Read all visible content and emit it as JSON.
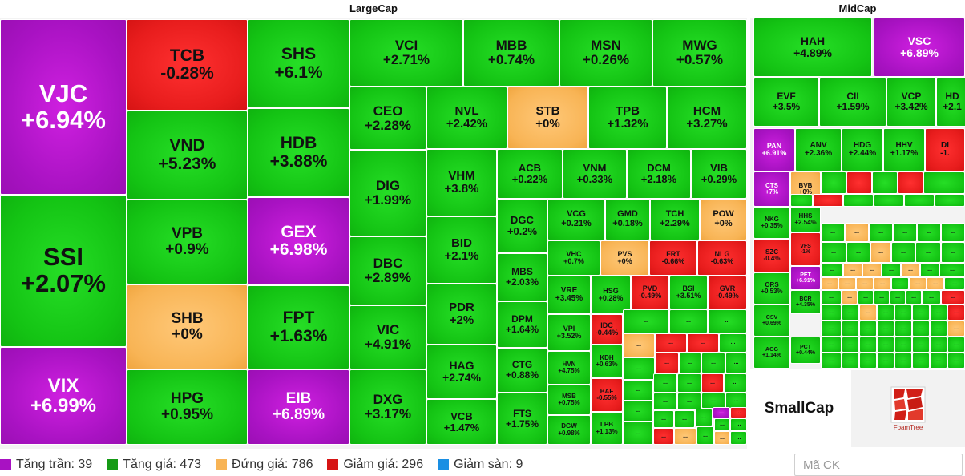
{
  "largecap": {
    "title": "LargeCap",
    "tiles": [
      {
        "t": "VJC",
        "p": "+6.94%",
        "s": "ceil"
      },
      {
        "t": "SSI",
        "p": "+2.07%",
        "s": "up"
      },
      {
        "t": "VIX",
        "p": "+6.99%",
        "s": "ceil"
      },
      {
        "t": "TCB",
        "p": "-0.28%",
        "s": "down"
      },
      {
        "t": "VND",
        "p": "+5.23%",
        "s": "up"
      },
      {
        "t": "VPB",
        "p": "+0.9%",
        "s": "up"
      },
      {
        "t": "SHB",
        "p": "+0%",
        "s": "flat"
      },
      {
        "t": "HPG",
        "p": "+0.95%",
        "s": "up"
      },
      {
        "t": "SHS",
        "p": "+6.1%",
        "s": "up"
      },
      {
        "t": "HDB",
        "p": "+3.88%",
        "s": "up"
      },
      {
        "t": "GEX",
        "p": "+6.98%",
        "s": "ceil"
      },
      {
        "t": "FPT",
        "p": "+1.63%",
        "s": "up"
      },
      {
        "t": "EIB",
        "p": "+6.89%",
        "s": "ceil"
      },
      {
        "t": "VCI",
        "p": "+2.71%",
        "s": "up"
      },
      {
        "t": "MBB",
        "p": "+0.74%",
        "s": "up"
      },
      {
        "t": "MSN",
        "p": "+0.26%",
        "s": "up"
      },
      {
        "t": "MWG",
        "p": "+0.57%",
        "s": "up"
      },
      {
        "t": "CEO",
        "p": "+2.28%",
        "s": "up"
      },
      {
        "t": "DIG",
        "p": "+1.99%",
        "s": "up"
      },
      {
        "t": "DBC",
        "p": "+2.89%",
        "s": "up"
      },
      {
        "t": "VIC",
        "p": "+4.91%",
        "s": "up"
      },
      {
        "t": "DXG",
        "p": "+3.17%",
        "s": "up"
      },
      {
        "t": "NVL",
        "p": "+2.42%",
        "s": "up"
      },
      {
        "t": "STB",
        "p": "+0%",
        "s": "flat"
      },
      {
        "t": "TPB",
        "p": "+1.32%",
        "s": "up"
      },
      {
        "t": "HCM",
        "p": "+3.27%",
        "s": "up"
      },
      {
        "t": "VHM",
        "p": "+3.8%",
        "s": "up"
      },
      {
        "t": "BID",
        "p": "+2.1%",
        "s": "up"
      },
      {
        "t": "PDR",
        "p": "+2%",
        "s": "up"
      },
      {
        "t": "HAG",
        "p": "+2.74%",
        "s": "up"
      },
      {
        "t": "VCB",
        "p": "+1.47%",
        "s": "up"
      },
      {
        "t": "ACB",
        "p": "+0.22%",
        "s": "up"
      },
      {
        "t": "VNM",
        "p": "+0.33%",
        "s": "up"
      },
      {
        "t": "DCM",
        "p": "+2.18%",
        "s": "up"
      },
      {
        "t": "VIB",
        "p": "+0.29%",
        "s": "up"
      },
      {
        "t": "DGC",
        "p": "+0.2%",
        "s": "up"
      },
      {
        "t": "MBS",
        "p": "+2.03%",
        "s": "up"
      },
      {
        "t": "DPM",
        "p": "+1.64%",
        "s": "up"
      },
      {
        "t": "CTG",
        "p": "+0.88%",
        "s": "up"
      },
      {
        "t": "FTS",
        "p": "+1.75%",
        "s": "up"
      },
      {
        "t": "VCG",
        "p": "+0.21%",
        "s": "up"
      },
      {
        "t": "GMD",
        "p": "+0.18%",
        "s": "up"
      },
      {
        "t": "TCH",
        "p": "+2.29%",
        "s": "up"
      },
      {
        "t": "POW",
        "p": "+0%",
        "s": "flat"
      },
      {
        "t": "VHC",
        "p": "+0.7%",
        "s": "up"
      },
      {
        "t": "PVS",
        "p": "+0%",
        "s": "flat"
      },
      {
        "t": "FRT",
        "p": "-0.66%",
        "s": "down"
      },
      {
        "t": "NLG",
        "p": "-0.63%",
        "s": "down"
      },
      {
        "t": "VRE",
        "p": "+3.45%",
        "s": "up"
      },
      {
        "t": "HSG",
        "p": "+0.28%",
        "s": "up"
      },
      {
        "t": "PVD",
        "p": "-0.49%",
        "s": "down"
      },
      {
        "t": "BSI",
        "p": "+3.51%",
        "s": "up"
      },
      {
        "t": "GVR",
        "p": "-0.49%",
        "s": "down"
      },
      {
        "t": "VPI",
        "p": "+3.52%",
        "s": "up"
      },
      {
        "t": "IDC",
        "p": "-0.44%",
        "s": "down"
      },
      {
        "t": "HVN",
        "p": "+4.75%",
        "s": "up"
      },
      {
        "t": "KDH",
        "p": "+0.63%",
        "s": "up"
      },
      {
        "t": "MSB",
        "p": "+0.75%",
        "s": "up"
      },
      {
        "t": "BAF",
        "p": "-0.55%",
        "s": "down"
      },
      {
        "t": "DGW",
        "p": "+0.98%",
        "s": "up"
      },
      {
        "t": "LPB",
        "p": "+1.13%",
        "s": "up"
      }
    ]
  },
  "midcap": {
    "title": "MidCap",
    "tiles": [
      {
        "t": "HAH",
        "p": "+4.89%",
        "s": "up"
      },
      {
        "t": "VSC",
        "p": "+6.89%",
        "s": "ceil"
      },
      {
        "t": "EVF",
        "p": "+3.5%",
        "s": "up"
      },
      {
        "t": "CII",
        "p": "+1.59%",
        "s": "up"
      },
      {
        "t": "VCP",
        "p": "+3.42%",
        "s": "up"
      },
      {
        "t": "HD",
        "p": "+2.1",
        "s": "up"
      },
      {
        "t": "PAN",
        "p": "+6.91%",
        "s": "ceil"
      },
      {
        "t": "ANV",
        "p": "+2.36%",
        "s": "up"
      },
      {
        "t": "HDG",
        "p": "+2.44%",
        "s": "up"
      },
      {
        "t": "HHV",
        "p": "+1.17%",
        "s": "up"
      },
      {
        "t": "DI",
        "p": "-1.",
        "s": "down"
      },
      {
        "t": "CTS",
        "p": "+7%",
        "s": "ceil"
      },
      {
        "t": "BVB",
        "p": "+0%",
        "s": "flat"
      },
      {
        "t": "NKG",
        "p": "+0.35%",
        "s": "up"
      },
      {
        "t": "HHS",
        "p": "+2.54%",
        "s": "up"
      },
      {
        "t": "SZC",
        "p": "-0.4%",
        "s": "down"
      },
      {
        "t": "VFS",
        "p": "-1%",
        "s": "down"
      },
      {
        "t": "PET",
        "p": "+6.91%",
        "s": "ceil"
      },
      {
        "t": "ORS",
        "p": "+0.53%",
        "s": "up"
      },
      {
        "t": "BCR",
        "p": "+4.35%",
        "s": "up"
      },
      {
        "t": "CSV",
        "p": "+0.69%",
        "s": "up"
      },
      {
        "t": "AGG",
        "p": "+1.14%",
        "s": "up"
      },
      {
        "t": "PCT",
        "p": "+0.44%",
        "s": "up"
      }
    ]
  },
  "dots_label": "...",
  "smallcap": {
    "title": "SmallCap"
  },
  "foamtree": {
    "label": "FoamTree"
  },
  "legend": [
    {
      "label": "Tăng trần: 39",
      "color": "#a812c2"
    },
    {
      "label": "Tăng giá: 473",
      "color": "#159a15"
    },
    {
      "label": "Đứng giá: 786",
      "color": "#f8b455"
    },
    {
      "label": "Giảm giá: 296",
      "color": "#d61414"
    },
    {
      "label": "Giảm sàn: 9",
      "color": "#1a8fe3"
    }
  ],
  "search": {
    "placeholder": "Mã CK"
  }
}
